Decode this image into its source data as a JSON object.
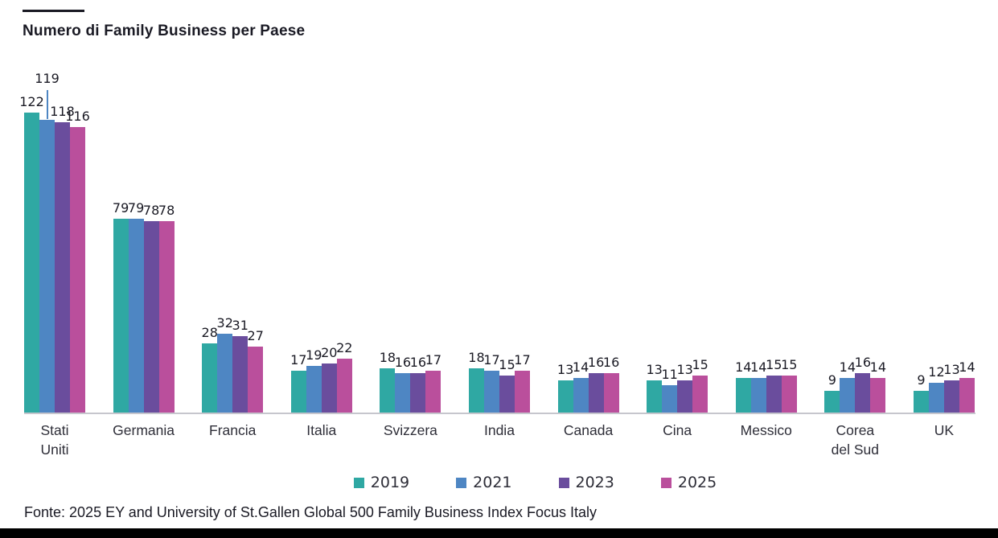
{
  "page": {
    "source_note": "Fonte: 2025 EY and University of St.Gallen Global 500 Family Business Index Focus Italy"
  },
  "colors": {
    "accent_rule": "#1a1a24",
    "axis_line": "#c6c6cd",
    "bottom_bar": "#000000"
  },
  "chart_data": {
    "type": "bar",
    "title": "Numero di Family Business per Paese",
    "categories": [
      "Stati\nUniti",
      "Germania",
      "Francia",
      "Italia",
      "Svizzera",
      "India",
      "Canada",
      "Cina",
      "Messico",
      "Corea\ndel Sud",
      "UK"
    ],
    "series": [
      {
        "name": "2019",
        "color": "#2FA8A3",
        "values": [
          122,
          79,
          28,
          17,
          18,
          18,
          13,
          13,
          14,
          9,
          9
        ]
      },
      {
        "name": "2021",
        "color": "#4E86C3",
        "values": [
          119,
          79,
          32,
          19,
          16,
          17,
          14,
          11,
          14,
          14,
          12
        ]
      },
      {
        "name": "2023",
        "color": "#6A4D9D",
        "values": [
          118,
          78,
          31,
          20,
          16,
          15,
          16,
          13,
          15,
          16,
          13
        ]
      },
      {
        "name": "2025",
        "color": "#BA4F9C",
        "values": [
          116,
          78,
          27,
          22,
          17,
          17,
          16,
          15,
          15,
          14,
          14
        ]
      }
    ],
    "ylim": [
      0,
      122
    ],
    "grid": false,
    "legend_position": "bottom",
    "bar_value_labels": true,
    "annotations": [
      {
        "category": "Stati Uniti",
        "series": "2021",
        "label": "119",
        "style": "raised label with vertical leader line to bar top"
      }
    ]
  }
}
